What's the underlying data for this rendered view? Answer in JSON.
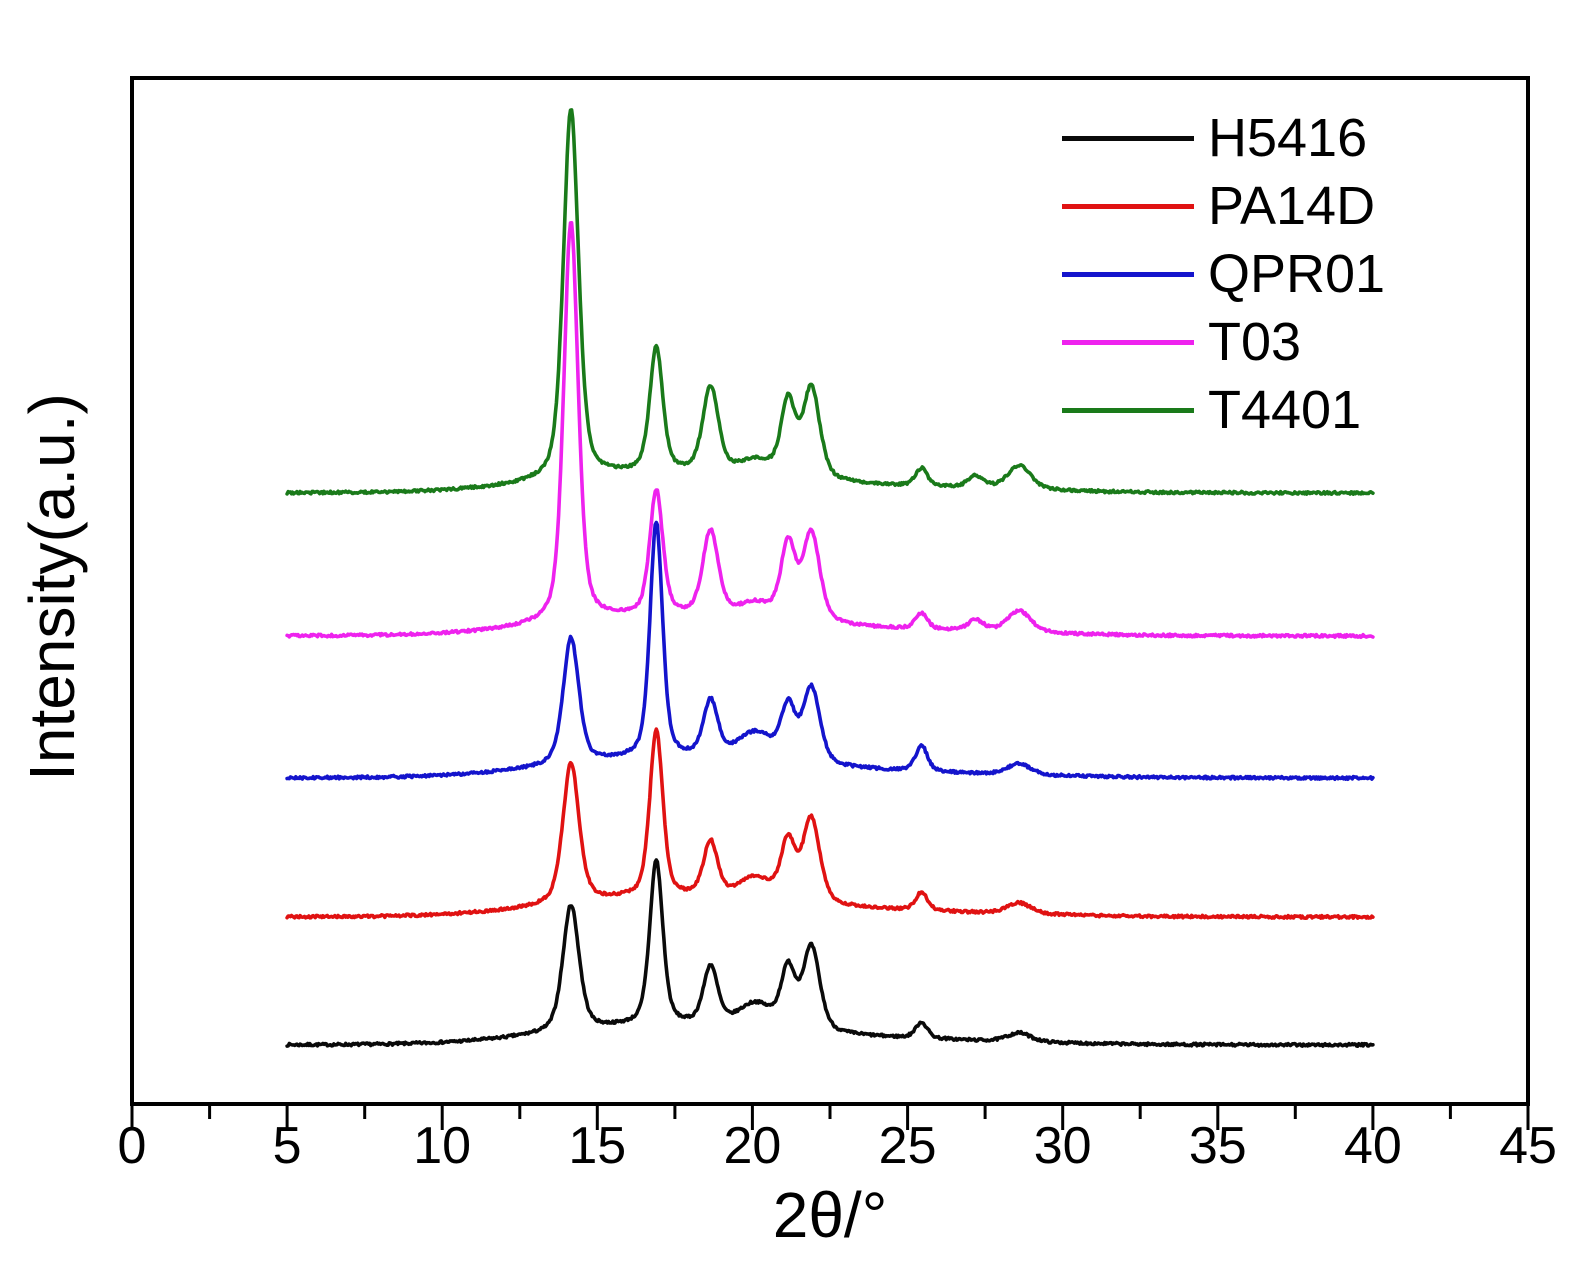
{
  "figure": {
    "background": "#ffffff",
    "frame_color": "#000000"
  },
  "axes": {
    "xlabel": "2θ/°",
    "ylabel": "Intensity(a.u.)",
    "xlim": [
      0,
      45
    ],
    "ylim": [
      0,
      1026
    ],
    "x_major_ticks": [
      0,
      5,
      10,
      15,
      20,
      25,
      30,
      35,
      40,
      45
    ],
    "x_minor_step": 2.5,
    "y_ticks": []
  },
  "legend": {
    "position": "top-right",
    "entries": [
      {
        "label": "H5416",
        "color": "#0a0a0a"
      },
      {
        "label": "PA14D",
        "color": "#e01212"
      },
      {
        "label": "QPR01",
        "color": "#1414cc"
      },
      {
        "label": "T03",
        "color": "#ee22ee"
      },
      {
        "label": "T4401",
        "color": "#1a7a1a"
      }
    ]
  },
  "chart_data": {
    "type": "line",
    "title": "",
    "xlabel": "2θ/°",
    "ylabel": "Intensity(a.u.)",
    "xlim": [
      0,
      45
    ],
    "ylim": [
      0,
      1026
    ],
    "x_range_of_traces": [
      5,
      40
    ],
    "y_units": "arbitrary intensity (stacked XRD patterns, values in plot-pixel units)",
    "peak_format": [
      "center_2theta_deg",
      "height",
      "fwhm_deg"
    ],
    "background_humps": [
      {
        "center": 16.5,
        "sigma": 3.2,
        "height": 14
      },
      {
        "center": 21.5,
        "sigma": 5.0,
        "height": 8
      }
    ],
    "noise_amplitude": 1.3,
    "series": [
      {
        "name": "H5416",
        "color": "#0a0a0a",
        "baseline_offset": 59,
        "peaks": [
          [
            14.15,
            126,
            0.62
          ],
          [
            16.9,
            164,
            0.5
          ],
          [
            18.65,
            58,
            0.55
          ],
          [
            20.1,
            24,
            1.3
          ],
          [
            21.15,
            58,
            0.55
          ],
          [
            21.9,
            84,
            0.65
          ],
          [
            25.45,
            16,
            0.45
          ],
          [
            28.6,
            9,
            0.9
          ]
        ]
      },
      {
        "name": "PA14D",
        "color": "#e01212",
        "baseline_offset": 187,
        "peaks": [
          [
            14.15,
            140,
            0.62
          ],
          [
            16.9,
            166,
            0.5
          ],
          [
            18.65,
            55,
            0.55
          ],
          [
            20.1,
            22,
            1.3
          ],
          [
            21.15,
            58,
            0.55
          ],
          [
            21.9,
            85,
            0.65
          ],
          [
            25.45,
            18,
            0.45
          ],
          [
            28.6,
            11,
            0.9
          ]
        ]
      },
      {
        "name": "QPR01",
        "color": "#1414cc",
        "baseline_offset": 326,
        "peaks": [
          [
            14.15,
            126,
            0.6
          ],
          [
            16.9,
            235,
            0.48
          ],
          [
            18.65,
            56,
            0.55
          ],
          [
            20.1,
            28,
            1.4
          ],
          [
            21.15,
            52,
            0.55
          ],
          [
            21.9,
            76,
            0.65
          ],
          [
            25.45,
            26,
            0.45
          ],
          [
            28.6,
            11,
            0.9
          ]
        ]
      },
      {
        "name": "T03",
        "color": "#ee22ee",
        "baseline_offset": 468,
        "peaks": [
          [
            14.15,
            400,
            0.55
          ],
          [
            16.9,
            124,
            0.5
          ],
          [
            18.65,
            85,
            0.6
          ],
          [
            20.1,
            15,
            1.3
          ],
          [
            21.15,
            75,
            0.55
          ],
          [
            21.9,
            89,
            0.65
          ],
          [
            25.45,
            16,
            0.45
          ],
          [
            27.2,
            11,
            0.6
          ],
          [
            28.6,
            22,
            0.9
          ]
        ]
      },
      {
        "name": "T4401",
        "color": "#1a7a1a",
        "baseline_offset": 611,
        "peaks": [
          [
            14.15,
            370,
            0.58
          ],
          [
            16.9,
            124,
            0.5
          ],
          [
            18.65,
            86,
            0.6
          ],
          [
            20.1,
            15,
            1.3
          ],
          [
            21.15,
            74,
            0.55
          ],
          [
            21.9,
            91,
            0.65
          ],
          [
            25.45,
            18,
            0.45
          ],
          [
            27.2,
            12,
            0.6
          ],
          [
            28.6,
            24,
            0.9
          ]
        ]
      }
    ]
  }
}
